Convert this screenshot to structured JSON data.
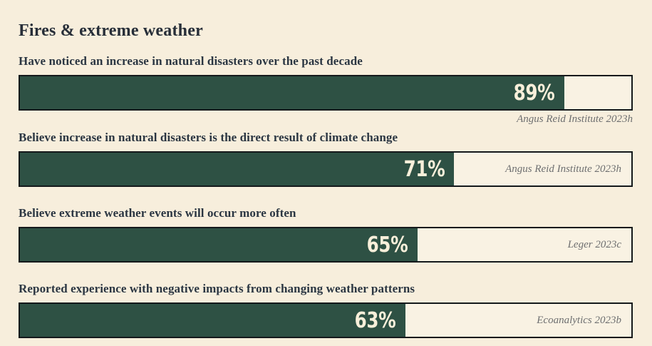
{
  "title": "Fires & extreme weather",
  "rows": [
    {
      "label": "Have noticed an increase in natural disasters over the past decade",
      "value": 89,
      "value_label": "89%",
      "source": "Angus Reid Institute 2023h"
    },
    {
      "label": "Believe increase in natural disasters is the direct result of climate change",
      "value": 71,
      "value_label": "71%",
      "source": "Angus Reid Institute 2023h"
    },
    {
      "label": "Believe extreme weather events will occur more often",
      "value": 65,
      "value_label": "65%",
      "source": "Leger 2023c"
    },
    {
      "label": "Reported experience with negative impacts from changing weather patterns",
      "value": 63,
      "value_label": "63%",
      "source": "Ecoanalytics 2023b"
    }
  ],
  "chart_data": {
    "type": "bar",
    "orientation": "horizontal",
    "title": "Fires & extreme weather",
    "categories": [
      "Have noticed an increase in natural disasters over the past decade",
      "Believe increase in natural disasters is the direct result of climate change",
      "Believe extreme weather events will occur more often",
      "Reported experience with negative impacts from changing weather patterns"
    ],
    "values": [
      89,
      71,
      65,
      63
    ],
    "value_format": "percent",
    "xlim": [
      0,
      100
    ],
    "data_labels": [
      "89%",
      "71%",
      "65%",
      "63%"
    ],
    "annotations": [
      "Angus Reid Institute 2023h",
      "Angus Reid Institute 2023h",
      "Leger 2023c",
      "Ecoanalytics 2023b"
    ],
    "legend": "none",
    "grid": false,
    "colors": {
      "bar_fill": "#2e5144",
      "bar_track": "#f9f2e3",
      "bar_border": "#14191b",
      "background": "#f7eedc",
      "title_text": "#272e38",
      "label_text": "#2b3642",
      "value_text": "#f8efda",
      "source_text": "#6e6f70"
    }
  }
}
